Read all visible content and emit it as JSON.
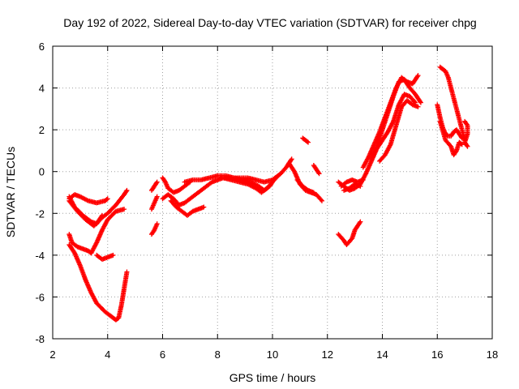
{
  "chart_data": {
    "type": "scatter",
    "title": "Day 192 of 2022, Sidereal Day-to-day VTEC variation (SDTVAR) for receiver chpg",
    "xlabel": "GPS time / hours",
    "ylabel": "SDTVAR / TECUs",
    "xlim": [
      2,
      18
    ],
    "ylim": [
      -8,
      6
    ],
    "xticks": [
      2,
      4,
      6,
      8,
      10,
      12,
      14,
      16,
      18
    ],
    "yticks": [
      -8,
      -6,
      -4,
      -2,
      0,
      2,
      4,
      6
    ],
    "xtick_labels": [
      "2",
      "4",
      "6",
      "8",
      "10",
      "12",
      "14",
      "16",
      "18"
    ],
    "ytick_labels": [
      "-8",
      "-6",
      "-4",
      "-2",
      "0",
      "2",
      "4",
      "6"
    ],
    "grid": true,
    "marker": "plus",
    "color": "#ff0000",
    "series": [
      {
        "segments": [
          [
            [
              2.6,
              -1.3
            ],
            [
              2.8,
              -1.1
            ],
            [
              3.0,
              -1.2
            ],
            [
              3.3,
              -1.4
            ],
            [
              3.6,
              -1.5
            ],
            [
              3.9,
              -1.4
            ],
            [
              4.0,
              -1.3
            ]
          ],
          [
            [
              2.6,
              -1.4
            ],
            [
              2.9,
              -1.9
            ],
            [
              3.2,
              -2.3
            ],
            [
              3.5,
              -2.6
            ],
            [
              3.8,
              -2.2
            ],
            [
              4.0,
              -2.0
            ],
            [
              4.3,
              -1.6
            ],
            [
              4.6,
              -1.1
            ],
            [
              4.7,
              -0.9
            ]
          ],
          [
            [
              2.6,
              -1.2
            ],
            [
              2.8,
              -1.7
            ],
            [
              3.1,
              -2.1
            ],
            [
              3.4,
              -2.4
            ],
            [
              3.6,
              -2.5
            ],
            [
              3.8,
              -2.1
            ]
          ],
          [
            [
              3.4,
              -3.9
            ],
            [
              3.6,
              -3.4
            ],
            [
              3.8,
              -2.8
            ],
            [
              4.0,
              -2.3
            ],
            [
              4.3,
              -1.9
            ],
            [
              4.6,
              -1.8
            ]
          ],
          [
            [
              3.6,
              -4.0
            ],
            [
              3.8,
              -4.2
            ],
            [
              4.0,
              -4.1
            ],
            [
              4.2,
              -4.0
            ]
          ],
          [
            [
              2.6,
              -3.0
            ],
            [
              2.7,
              -3.4
            ],
            [
              2.9,
              -3.6
            ],
            [
              3.1,
              -3.7
            ],
            [
              3.3,
              -3.8
            ],
            [
              3.4,
              -3.9
            ]
          ],
          [
            [
              2.6,
              -3.5
            ],
            [
              2.8,
              -3.9
            ],
            [
              3.0,
              -4.5
            ],
            [
              3.2,
              -5.2
            ],
            [
              3.4,
              -5.8
            ],
            [
              3.6,
              -6.3
            ],
            [
              3.9,
              -6.7
            ],
            [
              4.1,
              -6.9
            ],
            [
              4.2,
              -7.0
            ],
            [
              4.3,
              -7.1
            ],
            [
              4.4,
              -7.0
            ],
            [
              4.5,
              -6.4
            ],
            [
              4.6,
              -5.6
            ],
            [
              4.7,
              -4.8
            ]
          ],
          [
            [
              5.6,
              -3.0
            ],
            [
              5.7,
              -2.8
            ],
            [
              5.8,
              -2.5
            ]
          ],
          [
            [
              5.6,
              -1.8
            ],
            [
              5.7,
              -1.5
            ],
            [
              5.8,
              -1.2
            ]
          ],
          [
            [
              5.6,
              -0.9
            ],
            [
              5.7,
              -0.7
            ],
            [
              5.8,
              -0.5
            ]
          ],
          [
            [
              6.0,
              -0.3
            ],
            [
              6.1,
              -0.5
            ],
            [
              6.2,
              -0.8
            ],
            [
              6.4,
              -1.0
            ],
            [
              6.6,
              -0.9
            ],
            [
              6.8,
              -0.7
            ],
            [
              7.0,
              -0.5
            ]
          ],
          [
            [
              6.0,
              -1.3
            ],
            [
              6.2,
              -1.1
            ],
            [
              6.4,
              -1.3
            ],
            [
              6.6,
              -1.6
            ],
            [
              6.8,
              -1.5
            ],
            [
              7.0,
              -1.3
            ],
            [
              7.2,
              -1.1
            ],
            [
              7.4,
              -0.9
            ],
            [
              7.6,
              -0.7
            ],
            [
              7.8,
              -0.5
            ],
            [
              8.0,
              -0.4
            ],
            [
              8.2,
              -0.3
            ],
            [
              8.5,
              -0.3
            ],
            [
              8.8,
              -0.3
            ],
            [
              9.1,
              -0.3
            ],
            [
              9.4,
              -0.4
            ],
            [
              9.7,
              -0.5
            ],
            [
              10.0,
              -0.4
            ],
            [
              10.3,
              -0.1
            ],
            [
              10.5,
              0.2
            ],
            [
              10.7,
              0.6
            ]
          ],
          [
            [
              6.3,
              -1.4
            ],
            [
              6.5,
              -1.7
            ],
            [
              6.7,
              -1.9
            ],
            [
              6.9,
              -2.1
            ],
            [
              7.1,
              -1.9
            ],
            [
              7.3,
              -1.8
            ],
            [
              7.5,
              -1.7
            ]
          ],
          [
            [
              6.8,
              -0.5
            ],
            [
              7.1,
              -0.4
            ],
            [
              7.4,
              -0.4
            ],
            [
              7.7,
              -0.3
            ],
            [
              8.0,
              -0.2
            ],
            [
              8.3,
              -0.2
            ],
            [
              8.6,
              -0.3
            ],
            [
              8.9,
              -0.4
            ],
            [
              9.2,
              -0.5
            ],
            [
              9.5,
              -0.7
            ],
            [
              9.7,
              -0.9
            ],
            [
              9.9,
              -0.7
            ],
            [
              10.1,
              -0.3
            ]
          ],
          [
            [
              8.2,
              -0.3
            ],
            [
              8.5,
              -0.4
            ],
            [
              8.8,
              -0.5
            ],
            [
              9.1,
              -0.6
            ],
            [
              9.4,
              -0.8
            ],
            [
              9.6,
              -1.0
            ],
            [
              9.8,
              -0.8
            ],
            [
              10.0,
              -0.5
            ],
            [
              10.2,
              -0.2
            ]
          ],
          [
            [
              10.6,
              0.4
            ],
            [
              10.8,
              0.0
            ],
            [
              11.0,
              -0.6
            ],
            [
              11.2,
              -0.9
            ],
            [
              11.4,
              -1.0
            ],
            [
              11.6,
              -1.1
            ],
            [
              11.8,
              -1.4
            ]
          ],
          [
            [
              10.9,
              -0.4
            ],
            [
              11.1,
              -0.7
            ],
            [
              11.3,
              -0.9
            ],
            [
              11.5,
              -1.0
            ]
          ],
          [
            [
              11.1,
              1.6
            ],
            [
              11.2,
              1.5
            ],
            [
              11.3,
              1.4
            ]
          ],
          [
            [
              11.5,
              0.3
            ],
            [
              11.6,
              0.1
            ],
            [
              11.7,
              -0.1
            ]
          ],
          [
            [
              12.4,
              -3.0
            ],
            [
              12.6,
              -3.3
            ],
            [
              12.7,
              -3.5
            ],
            [
              12.9,
              -3.2
            ],
            [
              13.0,
              -2.8
            ],
            [
              13.2,
              -2.4
            ]
          ],
          [
            [
              12.4,
              -0.5
            ],
            [
              12.6,
              -0.7
            ],
            [
              12.8,
              -0.9
            ],
            [
              13.0,
              -0.8
            ],
            [
              13.2,
              -0.6
            ],
            [
              13.4,
              -0.1
            ],
            [
              13.6,
              0.5
            ],
            [
              13.8,
              1.1
            ],
            [
              14.0,
              1.5
            ],
            [
              14.2,
              1.9
            ],
            [
              14.4,
              2.4
            ],
            [
              14.6,
              3.2
            ],
            [
              14.8,
              3.7
            ],
            [
              15.0,
              3.6
            ],
            [
              15.2,
              3.3
            ]
          ],
          [
            [
              12.5,
              -0.7
            ],
            [
              12.7,
              -0.5
            ],
            [
              12.9,
              -0.4
            ],
            [
              13.1,
              -0.5
            ],
            [
              13.3,
              -0.4
            ]
          ],
          [
            [
              12.6,
              -0.9
            ],
            [
              12.8,
              -0.8
            ],
            [
              13.0,
              -0.6
            ],
            [
              13.2,
              -0.7
            ]
          ],
          [
            [
              13.3,
              0.2
            ],
            [
              13.5,
              0.7
            ],
            [
              13.7,
              1.3
            ],
            [
              13.9,
              1.9
            ],
            [
              14.1,
              2.6
            ],
            [
              14.3,
              3.3
            ],
            [
              14.5,
              4.0
            ],
            [
              14.7,
              4.5
            ],
            [
              14.9,
              4.3
            ],
            [
              15.1,
              4.2
            ],
            [
              15.3,
              4.6
            ]
          ],
          [
            [
              13.6,
              0.6
            ],
            [
              13.8,
              1.2
            ],
            [
              14.0,
              2.0
            ],
            [
              14.2,
              2.8
            ],
            [
              14.4,
              3.6
            ],
            [
              14.6,
              4.3
            ],
            [
              14.8,
              4.4
            ],
            [
              15.0,
              4.0
            ],
            [
              15.2,
              3.7
            ],
            [
              15.4,
              3.3
            ]
          ],
          [
            [
              13.9,
              0.5
            ],
            [
              14.1,
              0.8
            ],
            [
              14.3,
              1.3
            ],
            [
              14.5,
              2.2
            ],
            [
              14.7,
              3.1
            ],
            [
              14.9,
              3.4
            ],
            [
              15.1,
              3.2
            ],
            [
              15.3,
              3.1
            ]
          ],
          [
            [
              16.1,
              5.0
            ],
            [
              16.2,
              4.9
            ],
            [
              16.3,
              4.8
            ],
            [
              16.4,
              4.5
            ],
            [
              16.5,
              4.0
            ],
            [
              16.6,
              3.5
            ],
            [
              16.7,
              3.0
            ],
            [
              16.8,
              2.5
            ],
            [
              16.9,
              2.0
            ],
            [
              17.0,
              1.5
            ]
          ],
          [
            [
              16.0,
              3.2
            ],
            [
              16.1,
              2.6
            ],
            [
              16.2,
              2.1
            ],
            [
              16.3,
              1.8
            ],
            [
              16.4,
              1.7
            ],
            [
              16.5,
              1.7
            ],
            [
              16.6,
              1.9
            ],
            [
              16.7,
              2.0
            ],
            [
              16.8,
              1.8
            ],
            [
              16.9,
              1.6
            ]
          ],
          [
            [
              16.1,
              2.4
            ],
            [
              16.3,
              1.5
            ],
            [
              16.5,
              1.2
            ],
            [
              16.6,
              0.8
            ],
            [
              16.7,
              1.0
            ],
            [
              16.8,
              1.4
            ],
            [
              16.9,
              1.3
            ]
          ],
          [
            [
              17.0,
              2.4
            ],
            [
              17.1,
              2.2
            ],
            [
              17.1,
              1.8
            ],
            [
              17.0,
              1.4
            ],
            [
              17.1,
              1.2
            ]
          ]
        ]
      }
    ]
  }
}
